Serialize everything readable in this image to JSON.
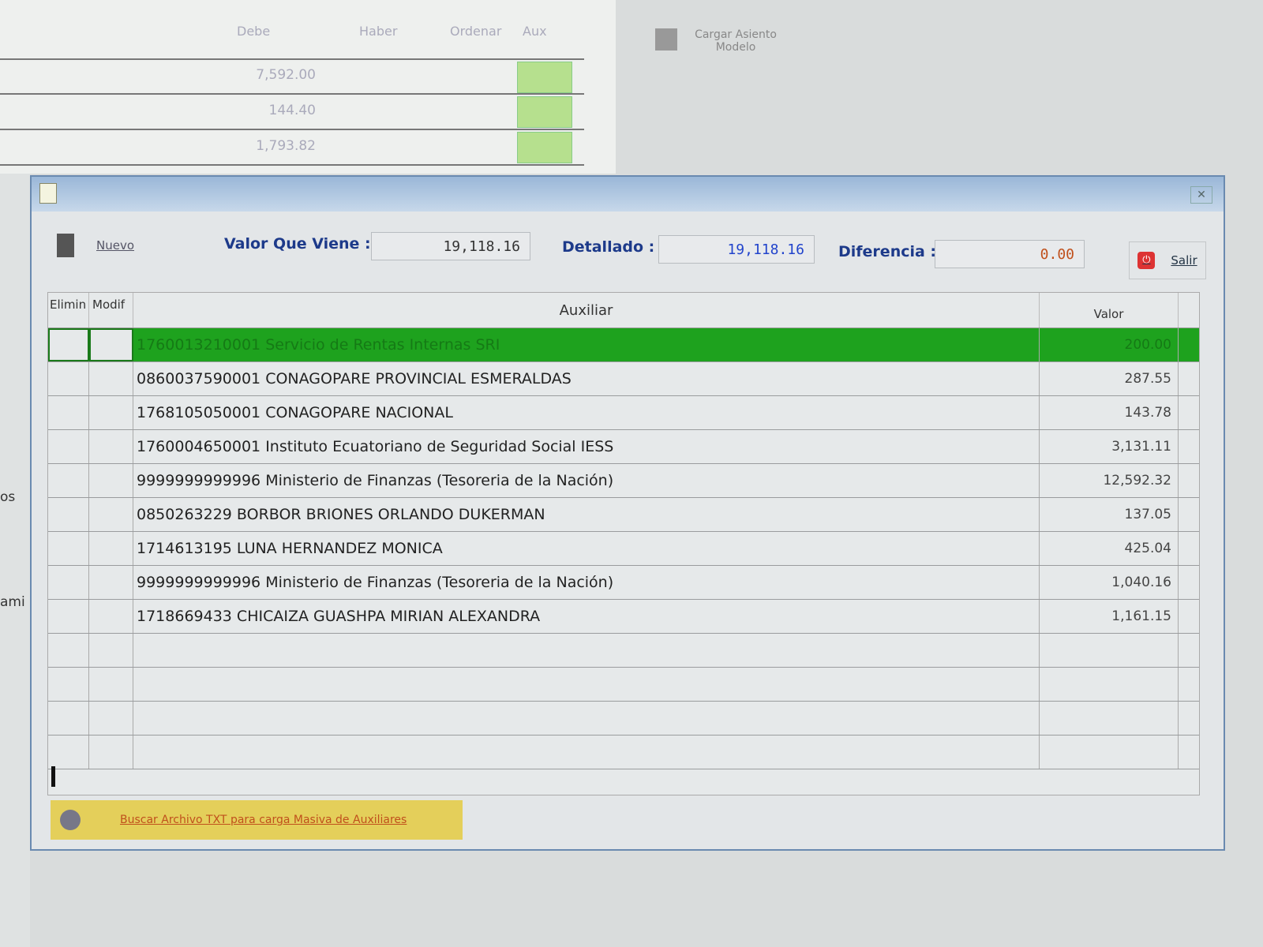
{
  "background": {
    "headers": [
      "Debe",
      "Haber",
      "Ordenar",
      "Aux"
    ],
    "debe_values": [
      "7,592.00",
      "144.40",
      "1,793.82"
    ],
    "cargar_label": "Cargar Asiento Modelo",
    "left_fragments": [
      "os",
      "ami"
    ]
  },
  "dialog": {
    "nuevo_label": "Nuevo",
    "valor_que_viene_label": "Valor Que Viene :",
    "valor_que_viene": "19,118.16",
    "detallado_label": "Detallado :",
    "detallado": "19,118.16",
    "diferencia_label": "Diferencia :",
    "diferencia": "0.00",
    "salir_label": "Salir",
    "columns": {
      "elimin": "Elimin",
      "modif": "Modif",
      "auxiliar": "Auxiliar",
      "valor": "Valor"
    },
    "rows": [
      {
        "auxiliar": "1760013210001  Servicio de Rentas Internas SRI",
        "valor": "200.00",
        "selected": true
      },
      {
        "auxiliar": "0860037590001  CONAGOPARE PROVINCIAL ESMERALDAS",
        "valor": "287.55"
      },
      {
        "auxiliar": "1768105050001  CONAGOPARE NACIONAL",
        "valor": "143.78"
      },
      {
        "auxiliar": "1760004650001  Instituto Ecuatoriano de Seguridad Social IESS",
        "valor": "3,131.11"
      },
      {
        "auxiliar": "9999999999996  Ministerio de Finanzas (Tesoreria de la Nación)",
        "valor": "12,592.32"
      },
      {
        "auxiliar": "0850263229  BORBOR BRIONES ORLANDO DUKERMAN",
        "valor": "137.05"
      },
      {
        "auxiliar": "1714613195  LUNA HERNANDEZ MONICA",
        "valor": "425.04"
      },
      {
        "auxiliar": "9999999999996  Ministerio de Finanzas (Tesoreria de la Nación)",
        "valor": "1,040.16"
      },
      {
        "auxiliar": "1718669433  CHICAIZA GUASHPA MIRIAN ALEXANDRA",
        "valor": "1,161.15"
      }
    ],
    "buscar_label": "Buscar Archivo TXT para carga Masiva de Auxiliares",
    "colors": {
      "selected_row": "#1ea21e",
      "title_blue": "#1d3a8a",
      "diferencia": "#c0501c",
      "buscar_bg": "#e4cf5a"
    }
  }
}
